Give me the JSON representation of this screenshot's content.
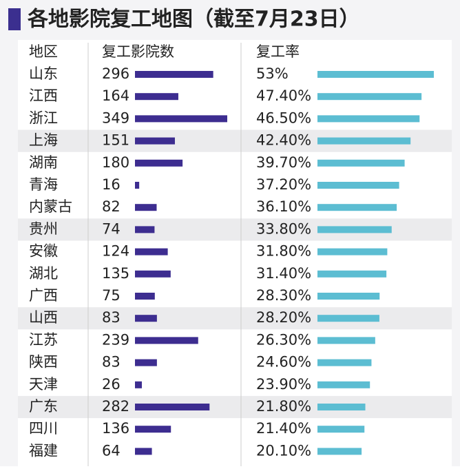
{
  "header": {
    "title": "各地影院复工地图（截至7月23日）"
  },
  "table": {
    "columns": [
      "地区",
      "复工影院数",
      "复工率"
    ],
    "rows": [
      {
        "region": "山东",
        "cinemas": 296,
        "rate": {
          "value": 53,
          "label": "53%"
        }
      },
      {
        "region": "江西",
        "cinemas": 164,
        "rate": {
          "value": 47.4,
          "label": "47.40%"
        }
      },
      {
        "region": "浙江",
        "cinemas": 349,
        "rate": {
          "value": 46.5,
          "label": "46.50%"
        }
      },
      {
        "region": "上海",
        "cinemas": 151,
        "rate": {
          "value": 42.4,
          "label": "42.40%"
        }
      },
      {
        "region": "湖南",
        "cinemas": 180,
        "rate": {
          "value": 39.7,
          "label": "39.70%"
        }
      },
      {
        "region": "青海",
        "cinemas": 16,
        "rate": {
          "value": 37.2,
          "label": "37.20%"
        }
      },
      {
        "region": "内蒙古",
        "cinemas": 82,
        "rate": {
          "value": 36.1,
          "label": "36.10%"
        }
      },
      {
        "region": "贵州",
        "cinemas": 74,
        "rate": {
          "value": 33.8,
          "label": "33.80%"
        }
      },
      {
        "region": "安徽",
        "cinemas": 124,
        "rate": {
          "value": 31.8,
          "label": "31.80%"
        }
      },
      {
        "region": "湖北",
        "cinemas": 135,
        "rate": {
          "value": 31.4,
          "label": "31.40%"
        }
      },
      {
        "region": "广西",
        "cinemas": 75,
        "rate": {
          "value": 28.3,
          "label": "28.30%"
        }
      },
      {
        "region": "山西",
        "cinemas": 83,
        "rate": {
          "value": 28.2,
          "label": "28.20%"
        }
      },
      {
        "region": "江苏",
        "cinemas": 239,
        "rate": {
          "value": 26.3,
          "label": "26.30%"
        }
      },
      {
        "region": "陕西",
        "cinemas": 83,
        "rate": {
          "value": 24.6,
          "label": "24.60%"
        }
      },
      {
        "region": "天津",
        "cinemas": 26,
        "rate": {
          "value": 23.9,
          "label": "23.90%"
        }
      },
      {
        "region": "广东",
        "cinemas": 282,
        "rate": {
          "value": 21.8,
          "label": "21.80%"
        }
      },
      {
        "region": "四川",
        "cinemas": 136,
        "rate": {
          "value": 21.4,
          "label": "21.40%"
        }
      },
      {
        "region": "福建",
        "cinemas": 64,
        "rate": {
          "value": 20.1,
          "label": "20.10%"
        }
      }
    ]
  }
}
